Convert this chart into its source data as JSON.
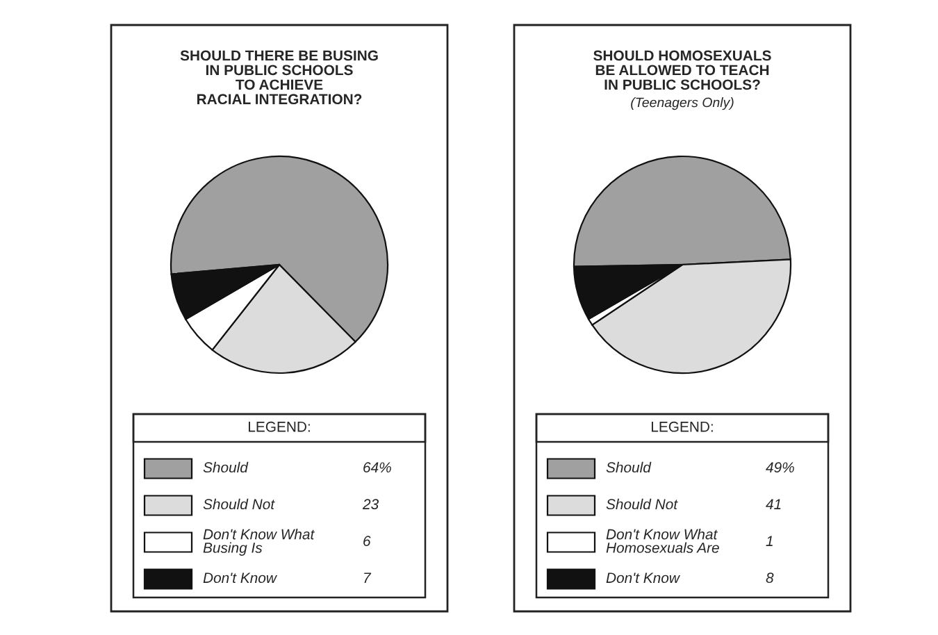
{
  "chart_data": [
    {
      "type": "pie",
      "title": "SHOULD THERE BE BUSING\nIN PUBLIC SCHOOLS\nTO ACHIEVE\nRACIAL INTEGRATION?",
      "legend_title": "LEGEND:",
      "legend": "bottom",
      "categories": [
        "Should",
        "Should Not",
        "Don't Know What\nBusing Is",
        "Don't Know"
      ],
      "values": [
        64,
        23,
        6,
        7
      ],
      "value_labels": [
        "64%",
        "23",
        "6",
        "7"
      ],
      "colors": [
        "#a0a0a0",
        "#dcdcdc",
        "#ffffff",
        "#111111"
      ]
    },
    {
      "type": "pie",
      "title": "SHOULD HOMOSEXUALS\nBE ALLOWED TO TEACH\nIN PUBLIC SCHOOLS?",
      "subtitle": "(Teenagers Only)",
      "legend_title": "LEGEND:",
      "legend": "bottom",
      "categories": [
        "Should",
        "Should Not",
        "Don't Know What\nHomosexuals Are",
        "Don't Know"
      ],
      "values": [
        49,
        41,
        1,
        8
      ],
      "value_labels": [
        "49%",
        "41",
        "1",
        "8"
      ],
      "colors": [
        "#a0a0a0",
        "#dcdcdc",
        "#ffffff",
        "#111111"
      ]
    }
  ]
}
